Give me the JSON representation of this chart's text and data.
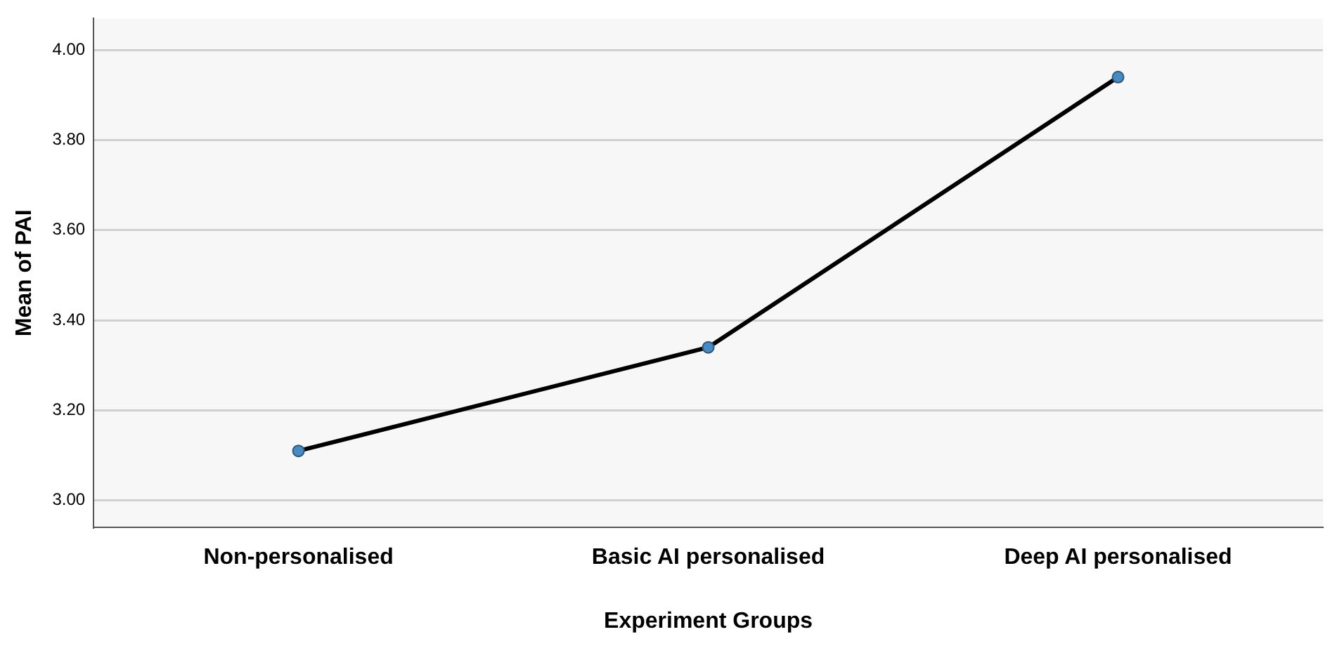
{
  "chart_data": {
    "type": "line",
    "xlabel": "Experiment Groups",
    "ylabel": "Mean of PAI",
    "categories": [
      "Non-personalised",
      "Basic AI personalised",
      "Deep AI personalised"
    ],
    "series": [
      {
        "color": "#000000",
        "values": [
          3.11,
          3.34,
          3.94
        ]
      }
    ],
    "ylim": [
      2.94,
      4.07
    ],
    "yticks": [
      {
        "value": 3,
        "label": "3.00"
      },
      {
        "value": 3.2,
        "label": "3.20"
      },
      {
        "value": 3.4,
        "label": "3.40"
      },
      {
        "value": 3.6,
        "label": "3.60"
      },
      {
        "value": 3.8,
        "label": "3.80"
      },
      {
        "value": 4,
        "label": "4.00"
      }
    ],
    "grid": "y",
    "legend": false,
    "marker": "circle",
    "line_style": "solid"
  }
}
